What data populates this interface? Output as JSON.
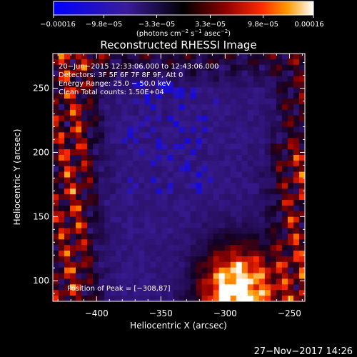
{
  "chart_data": {
    "type": "heatmap",
    "title": "Reconstructed RHESSI Image",
    "xlabel": "Heliocentric X (arcsec)",
    "ylabel": "Heliocentric Y (arcsec)",
    "xlim": [
      -434,
      -238
    ],
    "ylim": [
      84,
      277
    ],
    "x_ticks": [
      -400,
      -350,
      -300,
      -250
    ],
    "y_ticks": [
      100,
      150,
      200,
      250
    ],
    "x_tick_labels": [
      "−400",
      "−350",
      "−300",
      "−250"
    ],
    "y_tick_labels": [
      "100",
      "150",
      "200",
      "250"
    ],
    "colorbar": {
      "min": -0.00016,
      "max": 0.00016,
      "tick_values": [
        -0.00016,
        -9.8e-05,
        -3.3e-05,
        3.3e-05,
        9.8e-05,
        0.00016
      ],
      "tick_labels": [
        "−0.00016",
        "−9.8e−05",
        "−3.3e−05",
        "3.3e−05",
        "9.8e−05",
        "0.00016"
      ],
      "units_main": "(photons cm",
      "units_exp1": "−2",
      "units_mid": " s",
      "units_exp2": "−1",
      "units_end": " asec",
      "units_exp3": "−2",
      "units_close": ")"
    },
    "annotations": [
      "20−Jun−2015 12:33:06.000 to 12:43:06.000",
      "Detectors: 3F 5F 6F 7F 8F 9F, Att 0",
      "Energy Range: 25.0 − 50.0 keV",
      "Clean     Total counts: 1.50E+04"
    ],
    "peak_label": "Position of Peak = [−308,87]",
    "peak_position": [
      -308,
      87
    ],
    "timestamp": "27−Nov−2017 14:26",
    "colors": {
      "background": "#000000",
      "frame": "#ffffff"
    }
  }
}
